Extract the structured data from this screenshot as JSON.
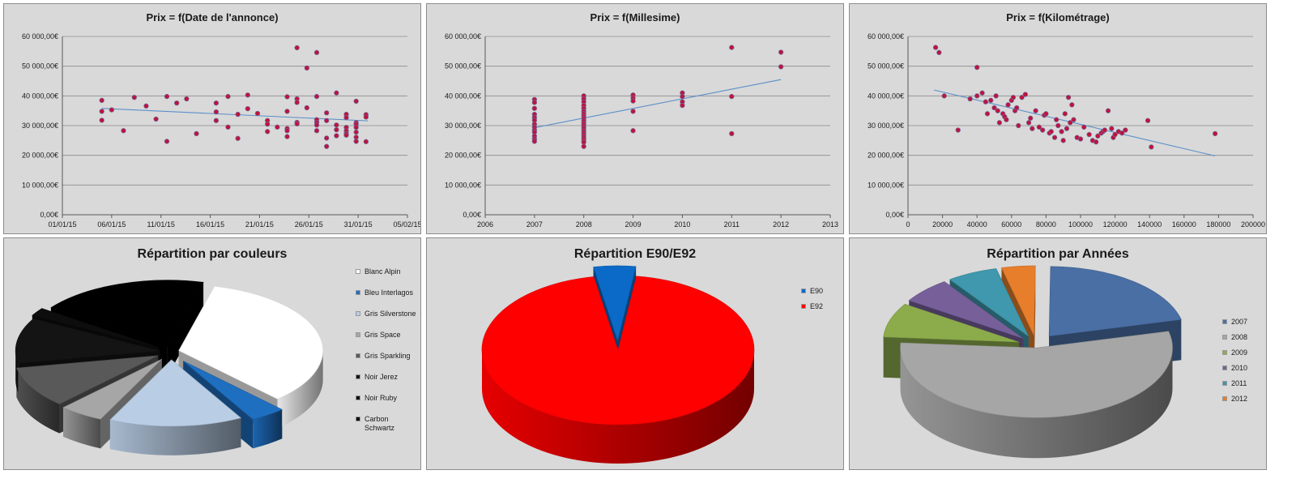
{
  "chart_data": [
    {
      "type": "scatter",
      "title": "Prix = f(Date de l'annonce)",
      "x_ticks": [
        "01/01/15",
        "06/01/15",
        "11/01/15",
        "16/01/15",
        "21/01/15",
        "26/01/15",
        "31/01/15",
        "05/02/15"
      ],
      "y_ticks": [
        "60 000,00€",
        "50 000,00€",
        "40 000,00€",
        "30 000,00€",
        "20 000,00€",
        "10 000,00€",
        "0,00€"
      ],
      "xlim": [
        0,
        35
      ],
      "ylim": [
        0,
        60000
      ],
      "grid": "horizontal",
      "trendline": {
        "type": "linear",
        "from": [
          4,
          35800
        ],
        "to": [
          31,
          31600
        ]
      },
      "points": [
        [
          4,
          38500
        ],
        [
          4,
          34800
        ],
        [
          4,
          31800
        ],
        [
          5,
          35300
        ],
        [
          6.2,
          28300
        ],
        [
          7.3,
          39500
        ],
        [
          8.5,
          36600
        ],
        [
          9.5,
          32200
        ],
        [
          10.6,
          39800
        ],
        [
          10.6,
          24700
        ],
        [
          11.6,
          37600
        ],
        [
          12.6,
          39000
        ],
        [
          13.6,
          27300
        ],
        [
          15.6,
          37600
        ],
        [
          15.6,
          34600
        ],
        [
          15.6,
          31700
        ],
        [
          16.8,
          39800
        ],
        [
          16.8,
          29500
        ],
        [
          17.8,
          25700
        ],
        [
          17.8,
          33800
        ],
        [
          18.8,
          40300
        ],
        [
          18.8,
          35700
        ],
        [
          19.8,
          34100
        ],
        [
          20.8,
          31700
        ],
        [
          20.8,
          30500
        ],
        [
          20.8,
          28000
        ],
        [
          21.8,
          29500
        ],
        [
          22.8,
          39700
        ],
        [
          22.8,
          34800
        ],
        [
          22.8,
          29000
        ],
        [
          22.8,
          28300
        ],
        [
          22.8,
          26300
        ],
        [
          23.8,
          56200
        ],
        [
          23.8,
          39000
        ],
        [
          23.8,
          37800
        ],
        [
          23.8,
          31100
        ],
        [
          23.8,
          30600
        ],
        [
          24.8,
          49400
        ],
        [
          24.8,
          36000
        ],
        [
          25.8,
          54600
        ],
        [
          25.8,
          39800
        ],
        [
          25.8,
          32000
        ],
        [
          25.8,
          31100
        ],
        [
          25.8,
          30200
        ],
        [
          25.8,
          28300
        ],
        [
          26.8,
          34300
        ],
        [
          26.8,
          31700
        ],
        [
          26.8,
          25800
        ],
        [
          26.8,
          23000
        ],
        [
          27.8,
          41000
        ],
        [
          27.8,
          30200
        ],
        [
          27.8,
          28600
        ],
        [
          27.8,
          26600
        ],
        [
          28.8,
          33800
        ],
        [
          28.8,
          32700
        ],
        [
          28.8,
          29400
        ],
        [
          28.8,
          28200
        ],
        [
          28.8,
          27300
        ],
        [
          28.8,
          26800
        ],
        [
          29.8,
          38200
        ],
        [
          29.8,
          31000
        ],
        [
          29.8,
          30400
        ],
        [
          29.8,
          29400
        ],
        [
          29.8,
          27800
        ],
        [
          29.8,
          26100
        ],
        [
          29.8,
          24700
        ],
        [
          30.8,
          33700
        ],
        [
          30.8,
          32900
        ],
        [
          30.8,
          24600
        ]
      ]
    },
    {
      "type": "scatter",
      "title": "Prix = f(Millesime)",
      "x_ticks": [
        "2006",
        "2007",
        "2008",
        "2009",
        "2010",
        "2011",
        "2012",
        "2013"
      ],
      "y_ticks": [
        "60 000,00€",
        "50 000,00€",
        "40 000,00€",
        "30 000,00€",
        "20 000,00€",
        "10 000,00€",
        "0,00€"
      ],
      "xlim": [
        2006,
        2013
      ],
      "ylim": [
        0,
        60000
      ],
      "grid": "horizontal",
      "trendline": {
        "type": "linear",
        "from": [
          2007,
          29300
        ],
        "to": [
          2012,
          45500
        ]
      },
      "points": [
        [
          2007,
          38800
        ],
        [
          2007,
          37800
        ],
        [
          2007,
          35800
        ],
        [
          2007,
          33800
        ],
        [
          2007,
          32700
        ],
        [
          2007,
          31800
        ],
        [
          2007,
          30500
        ],
        [
          2007,
          29500
        ],
        [
          2007,
          28500
        ],
        [
          2007,
          27800
        ],
        [
          2007,
          26500
        ],
        [
          2007,
          25500
        ],
        [
          2007,
          24700
        ],
        [
          2008,
          40000
        ],
        [
          2008,
          39000
        ],
        [
          2008,
          38000
        ],
        [
          2008,
          36800
        ],
        [
          2008,
          35800
        ],
        [
          2008,
          34800
        ],
        [
          2008,
          34000
        ],
        [
          2008,
          33200
        ],
        [
          2008,
          32400
        ],
        [
          2008,
          31600
        ],
        [
          2008,
          30800
        ],
        [
          2008,
          30000
        ],
        [
          2008,
          29200
        ],
        [
          2008,
          28400
        ],
        [
          2008,
          27600
        ],
        [
          2008,
          26800
        ],
        [
          2008,
          26000
        ],
        [
          2008,
          25200
        ],
        [
          2008,
          24400
        ],
        [
          2008,
          23000
        ],
        [
          2009,
          40300
        ],
        [
          2009,
          39300
        ],
        [
          2009,
          38300
        ],
        [
          2009,
          34800
        ],
        [
          2009,
          28300
        ],
        [
          2010,
          41000
        ],
        [
          2010,
          39800
        ],
        [
          2010,
          38000
        ],
        [
          2010,
          36800
        ],
        [
          2011,
          56300
        ],
        [
          2011,
          39800
        ],
        [
          2011,
          27300
        ],
        [
          2012,
          54700
        ],
        [
          2012,
          49800
        ]
      ]
    },
    {
      "type": "scatter",
      "title": "Prix = f(Kilométrage)",
      "x_ticks": [
        "0",
        "20000",
        "40000",
        "60000",
        "80000",
        "100000",
        "120000",
        "140000",
        "160000",
        "180000",
        "200000"
      ],
      "y_ticks": [
        "60 000,00€",
        "50 000,00€",
        "40 000,00€",
        "30 000,00€",
        "20 000,00€",
        "10 000,00€",
        "0,00€"
      ],
      "xlim": [
        0,
        200000
      ],
      "ylim": [
        0,
        60000
      ],
      "grid": "horizontal",
      "trendline": {
        "type": "linear",
        "from": [
          15000,
          42000
        ],
        "to": [
          178000,
          19800
        ]
      },
      "points": [
        [
          16000,
          56300
        ],
        [
          18000,
          54600
        ],
        [
          21000,
          40000
        ],
        [
          29000,
          28500
        ],
        [
          36000,
          39000
        ],
        [
          40000,
          49600
        ],
        [
          40000,
          40000
        ],
        [
          43000,
          41000
        ],
        [
          45000,
          38000
        ],
        [
          46000,
          34000
        ],
        [
          48000,
          38500
        ],
        [
          50000,
          36000
        ],
        [
          51000,
          40000
        ],
        [
          52000,
          35000
        ],
        [
          53000,
          31000
        ],
        [
          55000,
          34000
        ],
        [
          56000,
          33000
        ],
        [
          57000,
          32000
        ],
        [
          58000,
          37000
        ],
        [
          60000,
          38500
        ],
        [
          61000,
          39500
        ],
        [
          62000,
          35000
        ],
        [
          63000,
          36000
        ],
        [
          64000,
          30000
        ],
        [
          66000,
          39500
        ],
        [
          68000,
          40500
        ],
        [
          70000,
          31000
        ],
        [
          71000,
          32500
        ],
        [
          72000,
          29000
        ],
        [
          74000,
          35000
        ],
        [
          76000,
          29500
        ],
        [
          78000,
          28500
        ],
        [
          79000,
          33500
        ],
        [
          80000,
          34000
        ],
        [
          82000,
          27500
        ],
        [
          83000,
          28000
        ],
        [
          85000,
          26000
        ],
        [
          86000,
          32000
        ],
        [
          87000,
          30000
        ],
        [
          89000,
          28000
        ],
        [
          90000,
          25000
        ],
        [
          91000,
          34000
        ],
        [
          92000,
          29000
        ],
        [
          93000,
          39500
        ],
        [
          94000,
          31000
        ],
        [
          95000,
          37000
        ],
        [
          96000,
          32000
        ],
        [
          98000,
          26000
        ],
        [
          100000,
          25500
        ],
        [
          102000,
          29500
        ],
        [
          105000,
          27000
        ],
        [
          107000,
          25000
        ],
        [
          109000,
          24500
        ],
        [
          110000,
          26500
        ],
        [
          112000,
          27500
        ],
        [
          113000,
          28000
        ],
        [
          114000,
          28500
        ],
        [
          116000,
          35000
        ],
        [
          118000,
          29000
        ],
        [
          119000,
          26000
        ],
        [
          120000,
          27000
        ],
        [
          122000,
          28000
        ],
        [
          124000,
          27500
        ],
        [
          126000,
          28500
        ],
        [
          139000,
          31700
        ],
        [
          141000,
          22800
        ],
        [
          178000,
          27300
        ]
      ]
    },
    {
      "type": "pie",
      "title": "Répartition par couleurs",
      "legend_position": "right",
      "series": [
        {
          "name": "Blanc Alpin",
          "value": 34,
          "color": "#ffffff"
        },
        {
          "name": "Bleu Interlagos",
          "value": 4,
          "color": "#1f6fc1"
        },
        {
          "name": "Gris Silverstone",
          "value": 15,
          "color": "#b9cde5"
        },
        {
          "name": "Gris Space",
          "value": 5,
          "color": "#a6a6a6"
        },
        {
          "name": "Gris Sparkling",
          "value": 10,
          "color": "#595959"
        },
        {
          "name": "Noir Jerez",
          "value": 11,
          "color": "#141414"
        },
        {
          "name": "Noir Ruby",
          "value": 2,
          "color": "#0d0d0d"
        },
        {
          "name": "Carbon Schwartz",
          "value": 19,
          "color": "#000000"
        }
      ]
    },
    {
      "type": "pie",
      "title": "Répartition E90/E92",
      "legend_position": "right",
      "series": [
        {
          "name": "E90",
          "value": 5,
          "color": "#0b6ac7"
        },
        {
          "name": "E92",
          "value": 95,
          "color": "#ff0000"
        }
      ]
    },
    {
      "type": "pie",
      "title": "Répartition par Années",
      "legend_position": "right",
      "series": [
        {
          "name": "2007",
          "value": 21,
          "color": "#4a6fa5"
        },
        {
          "name": "2008",
          "value": 55,
          "color": "#a6a6a6"
        },
        {
          "name": "2009",
          "value": 8,
          "color": "#8cac4c"
        },
        {
          "name": "2010",
          "value": 6,
          "color": "#77609a"
        },
        {
          "name": "2011",
          "value": 6,
          "color": "#3f98ad"
        },
        {
          "name": "2012",
          "value": 4,
          "color": "#e67e2c"
        }
      ]
    }
  ]
}
